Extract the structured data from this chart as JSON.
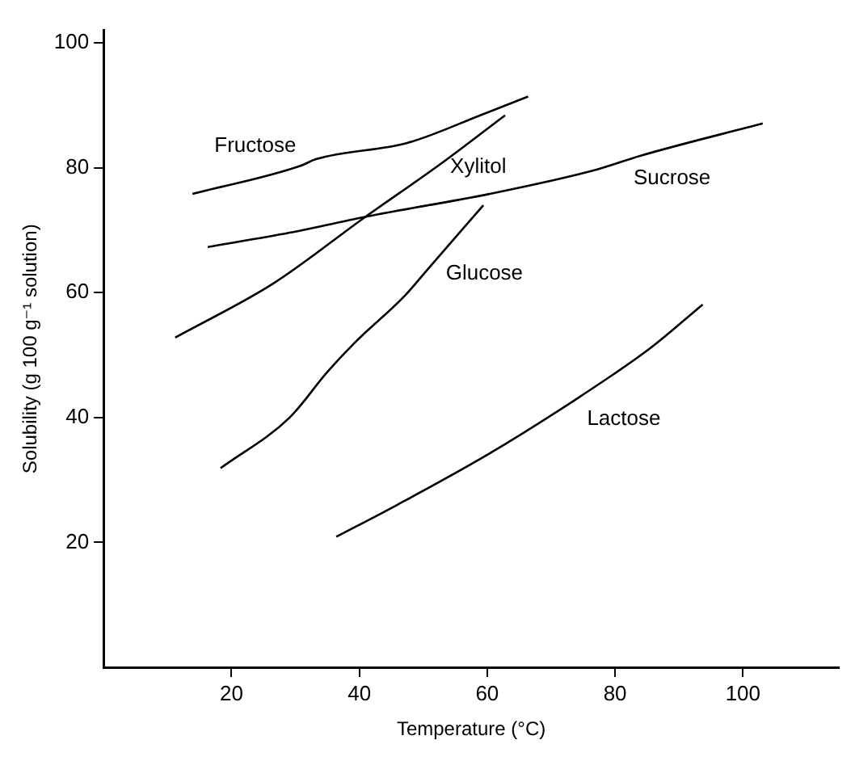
{
  "chart_data": {
    "type": "line",
    "xlabel": "Temperature (°C)",
    "ylabel": "Solubility (g 100 g⁻¹ solution)",
    "xlim": [
      0,
      115
    ],
    "ylim": [
      0,
      102
    ],
    "xticks": [
      20,
      40,
      60,
      80,
      100
    ],
    "yticks": [
      20,
      40,
      60,
      80,
      100
    ],
    "legend": false,
    "marker": "none",
    "line_style": "solid",
    "series": [
      {
        "name": "Fructose",
        "color": "#000000",
        "x": [
          13.9,
          30.8,
          33.3,
          47.6,
          59.4,
          66.4
        ],
        "values": [
          75.8,
          80.3,
          81.4,
          84,
          88.6,
          91.4
        ]
      },
      {
        "name": "Xylitol",
        "color": "#000000",
        "x": [
          11.2,
          26.6,
          40.9,
          52.7,
          62.8
        ],
        "values": [
          52.8,
          61.5,
          72.1,
          80.6,
          88.4
        ]
      },
      {
        "name": "Sucrose",
        "color": "#000000",
        "x": [
          16.3,
          29.1,
          41.7,
          60.3,
          77.1,
          83.9,
          103.1
        ],
        "values": [
          67.3,
          69.6,
          72.3,
          75.8,
          79.7,
          81.9,
          87.1
        ]
      },
      {
        "name": "Glucose",
        "color": "#000000",
        "x": [
          18.3,
          29.1,
          35,
          39.2,
          47.2,
          51,
          59.4
        ],
        "values": [
          31.9,
          40,
          47.3,
          51.9,
          59.6,
          64.1,
          74
        ]
      },
      {
        "name": "Lactose",
        "color": "#000000",
        "x": [
          36.4,
          45.9,
          60.3,
          74.6,
          85.5,
          93.7
        ],
        "values": [
          20.9,
          26,
          34.2,
          43.4,
          51.1,
          58.1
        ]
      }
    ]
  }
}
